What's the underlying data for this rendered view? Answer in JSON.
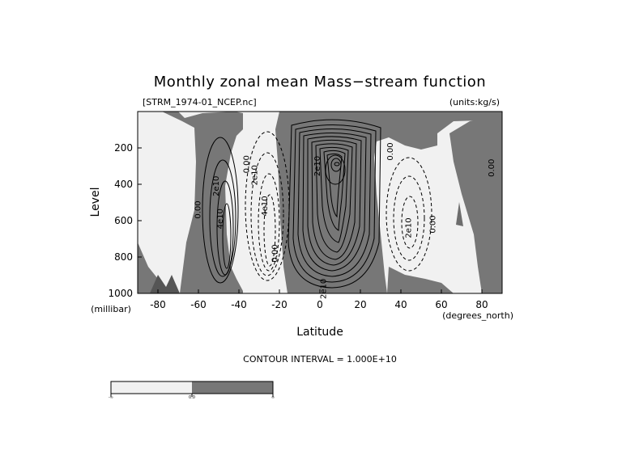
{
  "chart_data": {
    "type": "contour",
    "title": "Monthly zonal mean Mass−stream function",
    "file_label": "[STRM_1974-01_NCEP.nc]",
    "units_label": "(units:kg/s)",
    "xlabel": "Latitude",
    "x_unit_label": "(degrees_north)",
    "ylabel": "Level",
    "y_unit_label": "(millibar)",
    "xlim": [
      -90,
      90
    ],
    "ylim": [
      1000,
      0
    ],
    "x_ticks": [
      -80,
      -60,
      -40,
      -20,
      0,
      20,
      40,
      60,
      80
    ],
    "y_ticks": [
      200,
      400,
      600,
      800,
      1000
    ],
    "contour_interval_text": "CONTOUR INTERVAL = 1.000E+10",
    "contour_interval": 10000000000.0,
    "contour_labels": [
      {
        "text": "0.00",
        "x": -59,
        "y": 540
      },
      {
        "text": "2e10",
        "x": -50,
        "y": 410
      },
      {
        "text": "4e10",
        "x": -48,
        "y": 590
      },
      {
        "text": "0.00",
        "x": -35,
        "y": 290
      },
      {
        "text": "2e10",
        "x": -31,
        "y": 350
      },
      {
        "text": "4e10",
        "x": -26,
        "y": 520
      },
      {
        "text": "0.00",
        "x": -21,
        "y": 780
      },
      {
        "text": "2e10",
        "x": 3,
        "y": 975
      },
      {
        "text": "2e10",
        "x": 0,
        "y": 300
      },
      {
        "text": "0.00",
        "x": 36,
        "y": 220
      },
      {
        "text": "2e10",
        "x": 45,
        "y": 640
      },
      {
        "text": "0.00",
        "x": 57,
        "y": 620
      },
      {
        "text": "0.00",
        "x": 86,
        "y": 310
      }
    ],
    "regions": [
      {
        "sign": "positive",
        "lat_range": [
          -58,
          -35
        ],
        "level_range": [
          130,
          960
        ],
        "max": 50000000000.0
      },
      {
        "sign": "negative",
        "lat_range": [
          -35,
          -18
        ],
        "level_range": [
          120,
          940
        ],
        "min": -60000000000.0
      },
      {
        "sign": "positive",
        "lat_range": [
          -18,
          30
        ],
        "level_range": [
          50,
          1000
        ],
        "max": 130000000000.0
      },
      {
        "sign": "negative",
        "lat_range": [
          33,
          55
        ],
        "level_range": [
          200,
          920
        ],
        "min": -30000000000.0
      }
    ],
    "colorbar": {
      "colors": [
        "#f1f1f1",
        "#777777"
      ],
      "labels": [
        "-∞",
        "0.0",
        "∞"
      ]
    }
  }
}
